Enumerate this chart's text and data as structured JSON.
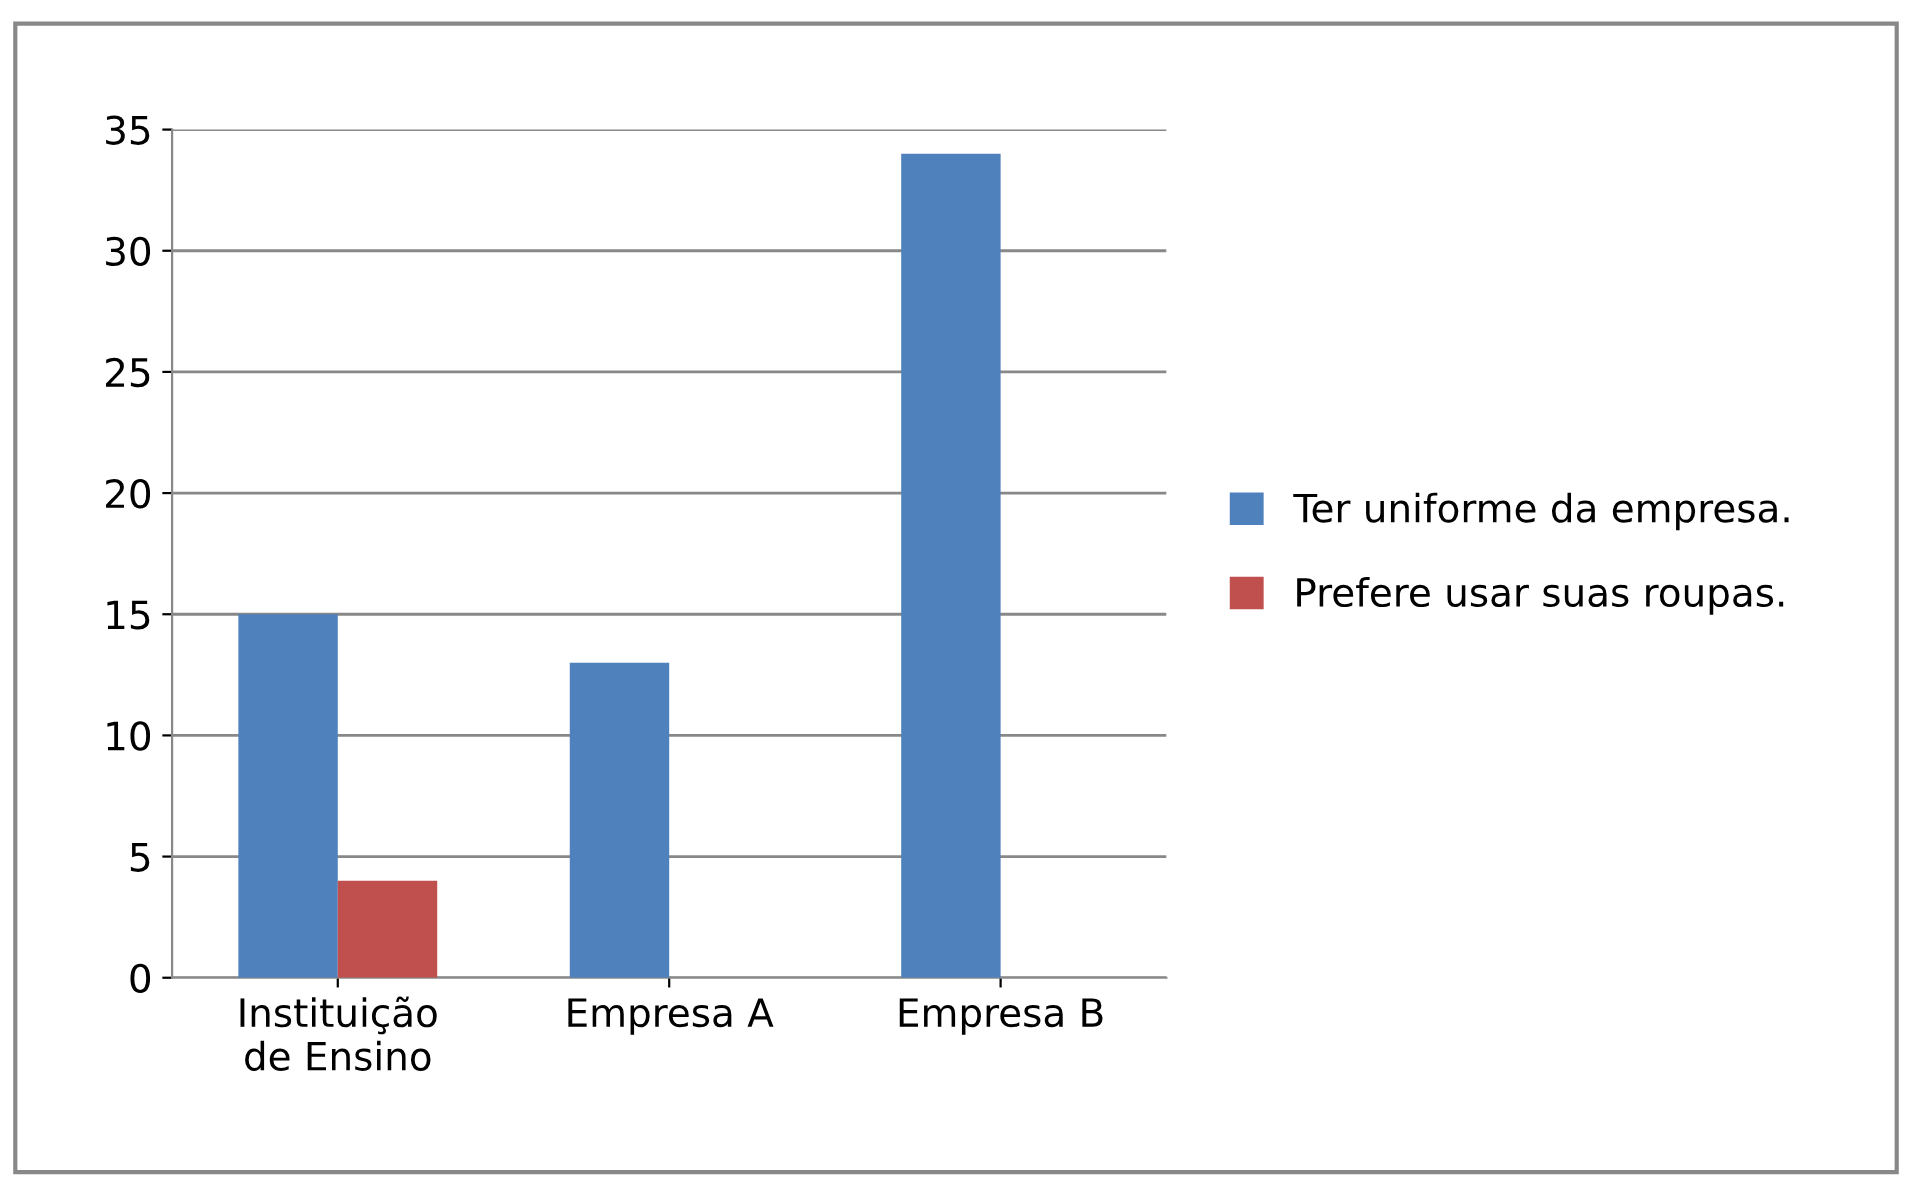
{
  "chart_data": {
    "type": "bar",
    "categories": [
      "Instituição de Ensino",
      "Empresa A",
      "Empresa B"
    ],
    "series": [
      {
        "name": "Ter uniforme da empresa.",
        "color": "#4f81bd",
        "values": [
          15,
          13,
          34
        ]
      },
      {
        "name": "Prefere usar suas roupas.",
        "color": "#c0504d",
        "values": [
          4,
          0,
          0
        ]
      }
    ],
    "ylim": [
      0,
      35
    ],
    "yticks": [
      0,
      5,
      10,
      15,
      20,
      25,
      30,
      35
    ],
    "grid": "y",
    "legend": "right"
  }
}
